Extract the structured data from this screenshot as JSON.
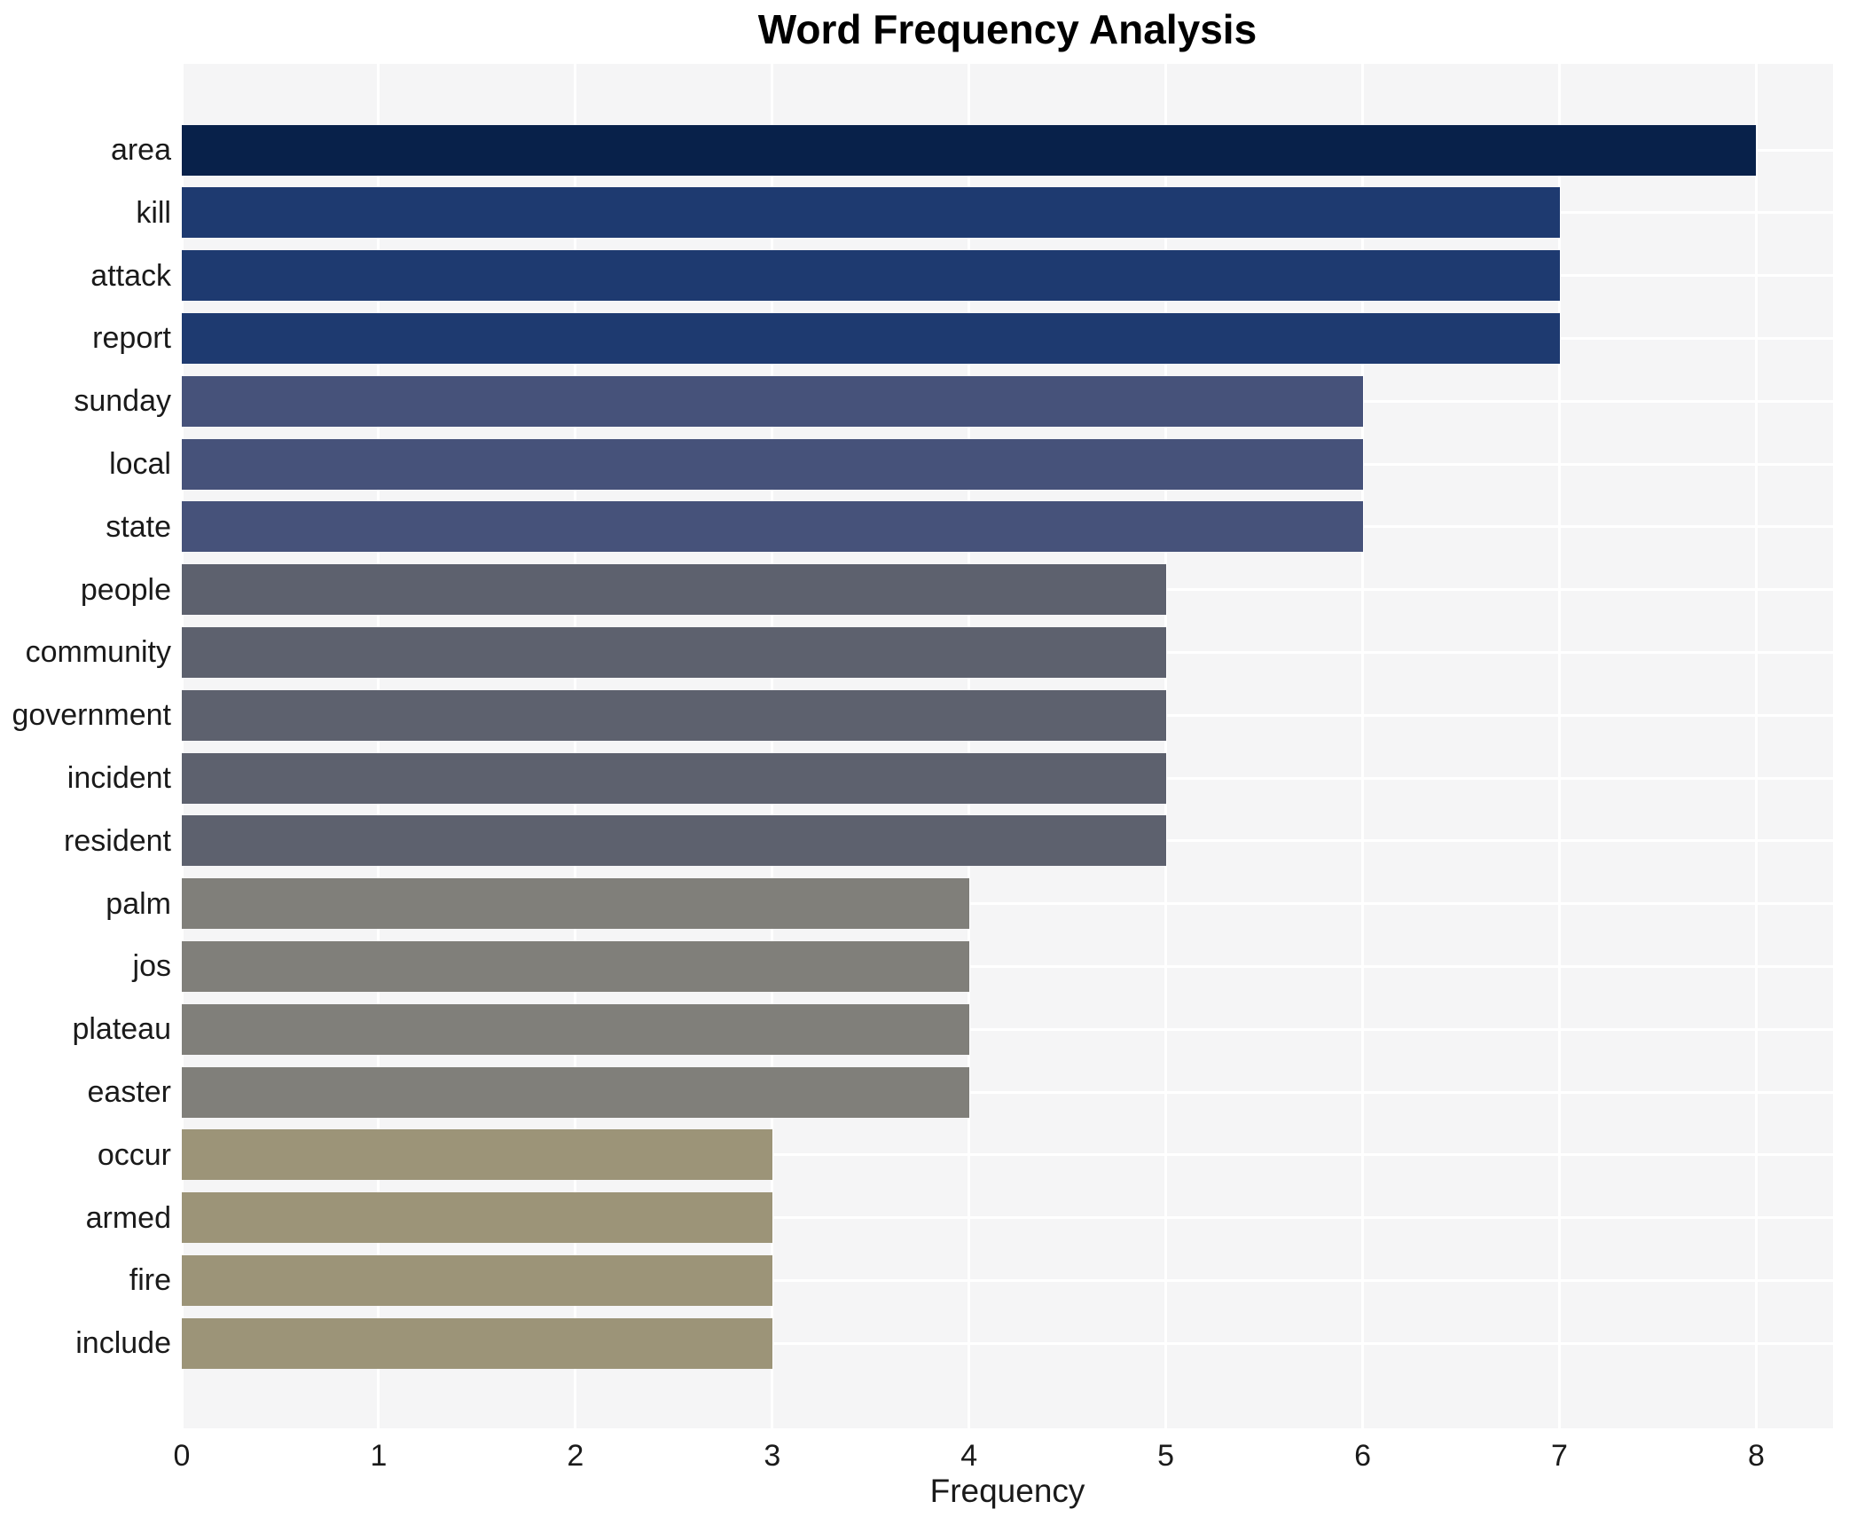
{
  "chart_data": {
    "type": "bar",
    "orientation": "horizontal",
    "title": "Word Frequency Analysis",
    "xlabel": "Frequency",
    "ylabel": "",
    "categories": [
      "area",
      "kill",
      "attack",
      "report",
      "sunday",
      "local",
      "state",
      "people",
      "community",
      "government",
      "incident",
      "resident",
      "palm",
      "jos",
      "plateau",
      "easter",
      "occur",
      "armed",
      "fire",
      "include"
    ],
    "values": [
      8,
      7,
      7,
      7,
      6,
      6,
      6,
      5,
      5,
      5,
      5,
      5,
      4,
      4,
      4,
      4,
      3,
      3,
      3,
      3
    ],
    "bar_colors": [
      "#08214a",
      "#1e3a70",
      "#1e3a70",
      "#1e3a70",
      "#46527a",
      "#46527a",
      "#46527a",
      "#5d616e",
      "#5d616e",
      "#5d616e",
      "#5d616e",
      "#5d616e",
      "#807f7a",
      "#807f7a",
      "#807f7a",
      "#807f7a",
      "#9c9478",
      "#9c9478",
      "#9c9478",
      "#9c9478"
    ],
    "xlim": [
      0,
      8.39
    ],
    "xticks": [
      0,
      1,
      2,
      3,
      4,
      5,
      6,
      7,
      8
    ],
    "grid": true,
    "grid_color": "#ffffff",
    "plot_background": "#f5f5f6",
    "legend": null
  }
}
